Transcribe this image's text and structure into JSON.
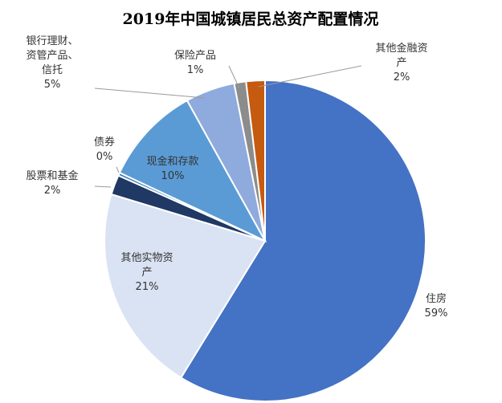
{
  "chart_data": {
    "type": "pie",
    "title": "2019年中国城镇居民总资产配置情况",
    "slices": [
      {
        "label": [
          "住房"
        ],
        "pct": "59%",
        "value": 59,
        "color": "#4472c4",
        "text_color": "#333333"
      },
      {
        "label": [
          "其他实物资",
          "产"
        ],
        "pct": "21%",
        "value": 21,
        "color": "#dae3f3",
        "text_color": "#333333"
      },
      {
        "label": [
          "股票和基金"
        ],
        "pct": "2%",
        "value": 2,
        "color": "#203864",
        "text_color": "#333333"
      },
      {
        "label": [
          "债券"
        ],
        "pct": "0%",
        "value": 0.3,
        "color": "#2e75b6",
        "text_color": "#333333"
      },
      {
        "label": [
          "现金和存款"
        ],
        "pct": "10%",
        "value": 10,
        "color": "#5b9bd5",
        "text_color": "#333333"
      },
      {
        "label": [
          "银行理财、",
          "资管产品、",
          "信托"
        ],
        "pct": "5%",
        "value": 5,
        "color": "#8faadc",
        "text_color": "#333333"
      },
      {
        "label": [
          "保险产品"
        ],
        "pct": "1%",
        "value": 1.2,
        "color": "#8c8c8c",
        "text_color": "#333333"
      },
      {
        "label": [
          "其他金融资",
          "产"
        ],
        "pct": "2%",
        "value": 1.9,
        "color": "#c55a11",
        "text_color": "#333333"
      }
    ]
  }
}
